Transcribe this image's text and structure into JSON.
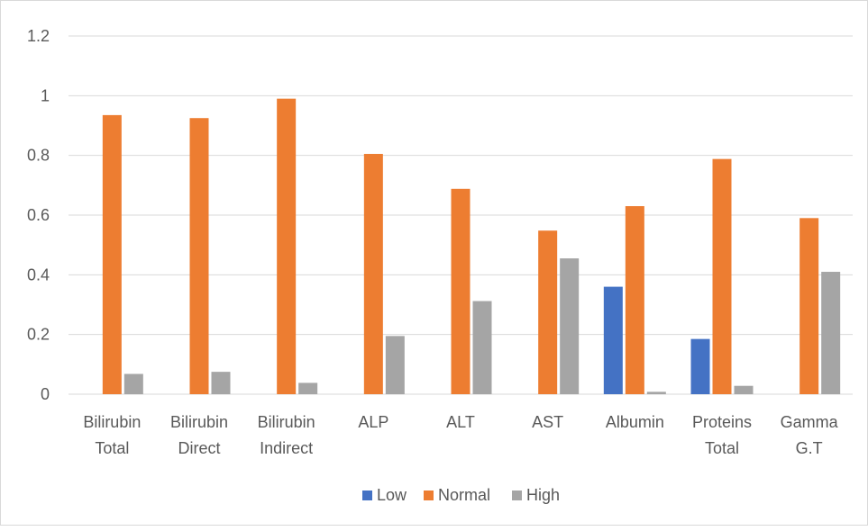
{
  "chart_data": {
    "type": "bar",
    "categories": [
      [
        "Bilirubin",
        "Total"
      ],
      [
        "Bilirubin",
        "Direct"
      ],
      [
        "Bilirubin",
        "Indirect"
      ],
      [
        "ALP"
      ],
      [
        "ALT"
      ],
      [
        "AST"
      ],
      [
        "Albumin"
      ],
      [
        "Proteins",
        "Total"
      ],
      [
        "Gamma",
        "G.T"
      ]
    ],
    "series": [
      {
        "name": "Low",
        "color": "#4472c4",
        "values": [
          0,
          0,
          0,
          0,
          0,
          0,
          0.36,
          0.185,
          0
        ]
      },
      {
        "name": "Normal",
        "color": "#ed7d31",
        "values": [
          0.935,
          0.925,
          0.99,
          0.805,
          0.688,
          0.548,
          0.63,
          0.788,
          0.59
        ]
      },
      {
        "name": "High",
        "color": "#a5a5a5",
        "values": [
          0.068,
          0.075,
          0.038,
          0.195,
          0.312,
          0.455,
          0.008,
          0.028,
          0.41
        ]
      }
    ],
    "y_ticks": [
      "0",
      "0.2",
      "0.4",
      "0.6",
      "0.8",
      "1",
      "1.2"
    ],
    "ylim": [
      0,
      1.2
    ],
    "grid": true,
    "legend": "bottom-center",
    "title": "",
    "xlabel": "",
    "ylabel": ""
  }
}
